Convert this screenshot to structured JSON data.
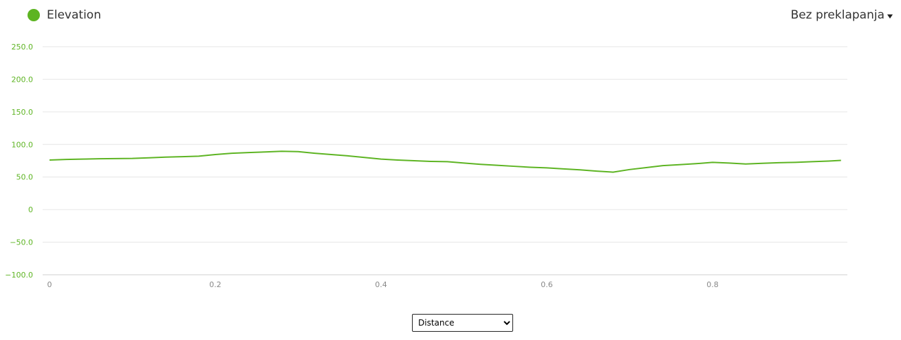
{
  "legend": {
    "label": "Elevation",
    "color": "#5db422"
  },
  "mode_dropdown": {
    "label": "Bez preklapanja"
  },
  "x_axis_select": {
    "selected": "Distance",
    "options": [
      "Distance"
    ]
  },
  "chart_data": {
    "type": "line",
    "title": "",
    "xlabel": "",
    "ylabel": "",
    "xlim": [
      0,
      0.955
    ],
    "ylim": [
      -100,
      250
    ],
    "y_ticks": [
      250,
      200,
      150,
      100,
      50,
      0,
      -50,
      -100
    ],
    "y_tick_labels": [
      "250.0",
      "200.0",
      "150.0",
      "100.0",
      "50.0",
      "0",
      "−50.0",
      "−100.0"
    ],
    "x_ticks": [
      0,
      0.2,
      0.4,
      0.6,
      0.8
    ],
    "x_tick_labels": [
      "0",
      "0.2",
      "0.4",
      "0.6",
      "0.8"
    ],
    "grid": true,
    "series": [
      {
        "color": "#5db422",
        "x": [
          0,
          0.02,
          0.04,
          0.06,
          0.08,
          0.1,
          0.12,
          0.14,
          0.16,
          0.18,
          0.2,
          0.22,
          0.24,
          0.26,
          0.28,
          0.3,
          0.32,
          0.34,
          0.36,
          0.38,
          0.4,
          0.42,
          0.44,
          0.46,
          0.48,
          0.5,
          0.52,
          0.54,
          0.56,
          0.58,
          0.6,
          0.62,
          0.64,
          0.66,
          0.68,
          0.7,
          0.72,
          0.74,
          0.76,
          0.78,
          0.8,
          0.82,
          0.84,
          0.86,
          0.88,
          0.9,
          0.92,
          0.94,
          0.955
        ],
        "y": [
          76,
          77,
          77.5,
          78,
          78.3,
          78.6,
          79.5,
          80.5,
          81.2,
          82,
          84.5,
          86.5,
          87.5,
          88.5,
          89.5,
          89,
          86.5,
          84.5,
          82.5,
          80,
          77.5,
          76,
          75,
          74,
          73.5,
          71.5,
          69.5,
          68,
          66.5,
          65,
          64,
          62.5,
          61,
          59,
          57.5,
          61.5,
          64.5,
          67.5,
          69,
          70.5,
          72.5,
          71.5,
          70,
          71,
          72,
          72.5,
          73.5,
          74.5,
          75.5
        ]
      }
    ]
  }
}
